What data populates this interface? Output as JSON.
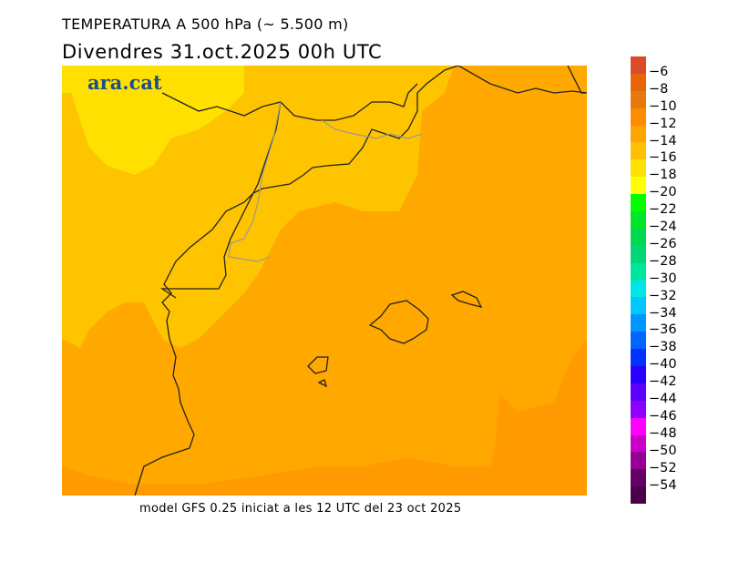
{
  "header": {
    "title": "TEMPERATURA A 500 hPa (~ 5.500 m)",
    "date": "Divendres  31.oct.2025 00h UTC"
  },
  "logo": "ara.cat",
  "footer": "model GFS 0.25 iniciat a les 12 UTC del 23 oct 2025",
  "colorbar": {
    "unit_labels": [
      "−6",
      "−8",
      "−10",
      "−12",
      "−14",
      "−16",
      "−18",
      "−20",
      "−22",
      "−24",
      "−26",
      "−28",
      "−30",
      "−32",
      "−34",
      "−36",
      "−38",
      "−40",
      "−42",
      "−44",
      "−46",
      "−48",
      "−50",
      "−52",
      "−54"
    ],
    "colors": [
      "#dc4b28",
      "#e8640a",
      "#e57a0a",
      "#ff8c00",
      "#ffa500",
      "#ffc000",
      "#ffe000",
      "#ffff00",
      "#00ff00",
      "#00e628",
      "#00d850",
      "#00d878",
      "#00e6a0",
      "#00e6e6",
      "#00c8ff",
      "#0096ff",
      "#0064ff",
      "#0032ff",
      "#2800ff",
      "#5a00ff",
      "#8c00ff",
      "#ff00ff",
      "#c800c8",
      "#960096",
      "#640064",
      "#4b004b"
    ]
  },
  "map_colors": {
    "range_minus10_minus12": "#ff9a00",
    "range_minus12_minus14": "#ffa800",
    "range_minus14_minus16": "#ffc400",
    "range_minus16_minus18": "#ffe000"
  }
}
